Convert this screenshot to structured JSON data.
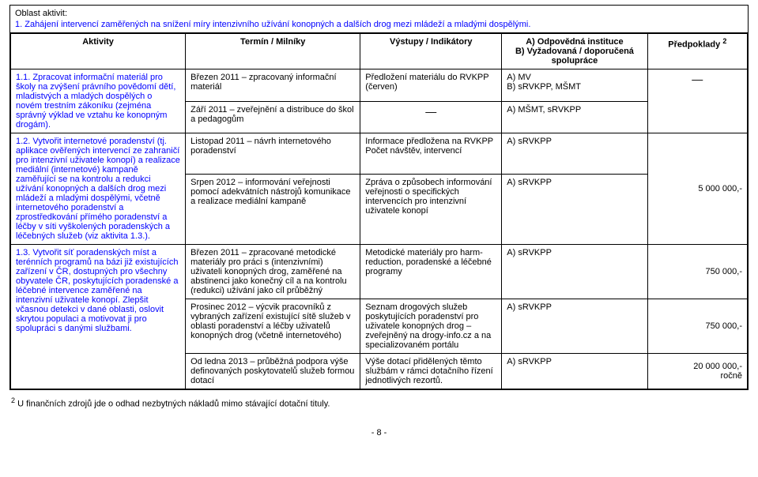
{
  "area": {
    "label": "Oblast aktivit:",
    "title": "1. Zahájení intervencí zaměřených na snížení míry intenzivního užívání konopných a dalších drog mezi mládeží a mladými dospělými."
  },
  "headers": {
    "activities": "Aktivity",
    "terms": "Termín / Milníky",
    "outputs": "Výstupy / Indikátory",
    "responsible": "A) Odpovědná instituce\nB) Vyžadovaná / doporučená spolupráce",
    "prerequisites": "Předpoklady",
    "prereq_sup": "2"
  },
  "r11": {
    "activity": "1.1. Zpracovat informační materiál pro školy na zvýšení právního povědomí dětí, mladistvých a mladých dospělých o novém trestním zákoníku (zejména správný výklad ve vztahu ke konopným drogám).",
    "term_a": "Březen 2011 – zpracovaný informační materiál",
    "out_a": "Předložení materiálu do RVKPP (červen)",
    "resp_a": "A) MV\nB)  sRVKPP, MŠMT",
    "term_b": "Září 2011 –  zveřejnění a distribuce do škol a pedagogům",
    "out_b": "—",
    "resp_b": "A) MŠMT, sRVKPP",
    "pre_dash": "—"
  },
  "r12": {
    "activity": "1.2. Vytvořit internetové poradenství (tj. aplikace ověřených intervencí ze zahraničí pro intenzivní uživatele konopí) a realizace mediální (internetové) kampaně zaměřující se na kontrolu a redukci užívání konopných a dalších drog mezi mládeží a mladými dospělými, včetně internetového poradenství a zprostředkování přímého poradenství a léčby v síti vyškolených poradenských a léčebných služeb (viz aktivita 1.3.).",
    "term_a": "Listopad 2011 – návrh internetového poradenství",
    "out_a": "Informace předložena na RVKPP\nPočet návštěv, intervencí",
    "resp_a": "A) sRVKPP",
    "term_b": "Srpen 2012 – informování veřejnosti pomocí adekvátních nástrojů komunikace a realizace mediální kampaně",
    "out_b": "Zpráva o způsobech informování veřejnosti  o specifických intervencích pro intenzivní uživatele konopí",
    "resp_b": "A) sRVKPP",
    "pre": "5 000 000,-"
  },
  "r13": {
    "activity": "1.3. Vytvořit síť poradenských míst a terénních programů na bázi již existujících zařízení v ČR, dostupných pro všechny obyvatele ČR, poskytujících poradenské a léčebné intervence zaměřené na intenzivní uživatele konopí. Zlepšit včasnou detekci v dané oblasti, oslovit skrytou populaci a motivovat ji pro spolupráci s danými službami.",
    "term_a": "Březen 2011 – zpracované metodické materiály pro práci s (intenzivními) uživateli konopných drog, zaměřené na abstinenci jako konečný cíl a na kontrolu (redukci) užívání jako cíl průběžný",
    "out_a": "Metodické materiály pro harm-reduction, poradenské a léčebné programy",
    "resp_a": "A) sRVKPP",
    "pre_a": "750 000,-",
    "term_b": "Prosinec 2012 – výcvik pracovníků z vybraných zařízení existující sítě služeb v oblasti poradenství a léčby uživatelů konopných drog (včetně internetového)",
    "out_b": "Seznam drogových služeb poskytujících poradenství pro uživatele konopných drog – zveřejněný na drogy-info.cz a na specializovaném portálu",
    "resp_b": "A) sRVKPP",
    "pre_b": "750 000,-",
    "term_c": "Od ledna 2013 – průběžná podpora výše definovaných poskytovatelů služeb formou dotací",
    "out_c": "Výše dotací přidělených těmto službám v rámci dotačního řízení jednotlivých rezortů.",
    "resp_c": "A) sRVKPP",
    "pre_c": "20 000 000,-\nročně"
  },
  "footnote": {
    "num": "2",
    "text": " U finančních zdrojů jde o odhad nezbytných nákladů mimo stávající dotační tituly."
  },
  "pagenum": "- 8 -"
}
